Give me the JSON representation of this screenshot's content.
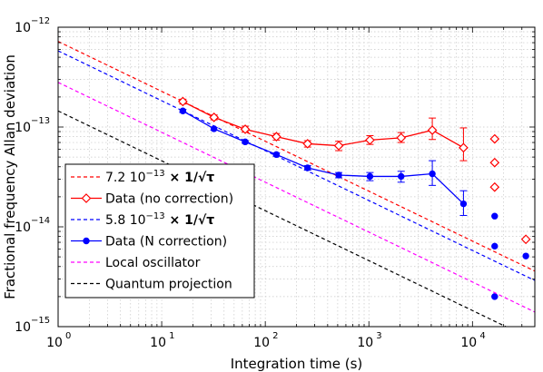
{
  "chart_data": {
    "type": "line",
    "xscale": "log",
    "yscale": "log",
    "xlim": [
      1,
      40000
    ],
    "ylim": [
      1e-15,
      1e-12
    ],
    "grid": true,
    "xlabel": "Integration time (s)",
    "ylabel": "Fractional frequency Allan deviation",
    "x_ticks": [
      {
        "value": 1,
        "base": "10",
        "exp": "0"
      },
      {
        "value": 10,
        "base": "10",
        "exp": "1"
      },
      {
        "value": 100,
        "base": "10",
        "exp": "2"
      },
      {
        "value": 1000,
        "base": "10",
        "exp": "3"
      },
      {
        "value": 10000,
        "base": "10",
        "exp": "4"
      }
    ],
    "y_ticks": [
      {
        "value": 1e-15,
        "base": "10",
        "exp": "−15"
      },
      {
        "value": 1e-14,
        "base": "10",
        "exp": "−14"
      },
      {
        "value": 1e-13,
        "base": "10",
        "exp": "−13"
      },
      {
        "value": 1e-12,
        "base": "10",
        "exp": "−12"
      }
    ],
    "legend_position": "lower-left",
    "series": [
      {
        "name": "7.2 10−13 × 1/√τ",
        "legend_prefix": "7.2 10",
        "legend_exp": "−13",
        "legend_suffix": "× 1/√τ",
        "kind": "fit",
        "coef": 7.2e-13,
        "color": "#ff0000",
        "dash": "dashed"
      },
      {
        "name": "Data (no correction)",
        "kind": "data",
        "marker": "diamond",
        "color": "#ff0000",
        "x": [
          16,
          32,
          64,
          128,
          256,
          512,
          1024,
          2048,
          4096,
          8192
        ],
        "y": [
          1.8e-13,
          1.25e-13,
          9.5e-14,
          8e-14,
          6.8e-14,
          6.5e-14,
          7.4e-14,
          7.8e-14,
          9.3e-14,
          6.2e-14
        ],
        "err_low": [
          1.7e-13,
          1.18e-13,
          8.9e-14,
          7.4e-14,
          6.3e-14,
          5.8e-14,
          6.7e-14,
          7e-14,
          7.5e-14,
          4.6e-14
        ],
        "err_high": [
          1.9e-13,
          1.32e-13,
          1.02e-13,
          8.6e-14,
          7.3e-14,
          7.2e-14,
          8.2e-14,
          8.8e-14,
          1.23e-13,
          9.8e-14
        ],
        "extra_x": [
          16384,
          16384,
          16384,
          32768
        ],
        "extra_y": [
          7.6e-14,
          4.4e-14,
          2.5e-14,
          7.5e-15
        ]
      },
      {
        "name": "5.8 10−13 × 1/√τ",
        "legend_prefix": "5.8 10",
        "legend_exp": "−13",
        "legend_suffix": "× 1/√τ",
        "kind": "fit",
        "coef": 5.8e-13,
        "color": "#0000ff",
        "dash": "dashed"
      },
      {
        "name": "Data (N correction)",
        "kind": "data",
        "marker": "circle",
        "color": "#0000ff",
        "x": [
          16,
          32,
          64,
          128,
          256,
          512,
          1024,
          2048,
          4096,
          8192
        ],
        "y": [
          1.45e-13,
          9.6e-14,
          7.1e-14,
          5.3e-14,
          3.9e-14,
          3.3e-14,
          3.2e-14,
          3.2e-14,
          3.4e-14,
          1.7e-14
        ],
        "err_low": [
          1.4e-13,
          9.3e-14,
          6.9e-14,
          5.1e-14,
          3.7e-14,
          3.1e-14,
          2.9e-14,
          2.8e-14,
          2.6e-14,
          1.3e-14
        ],
        "err_high": [
          1.5e-13,
          9.9e-14,
          7.3e-14,
          5.5e-14,
          4.1e-14,
          3.5e-14,
          3.5e-14,
          3.6e-14,
          4.6e-14,
          2.3e-14
        ],
        "extra_x": [
          16384,
          16384,
          16384,
          32768
        ],
        "extra_y": [
          1.28e-14,
          6.4e-15,
          2e-15,
          5.1e-15
        ]
      },
      {
        "name": "Local oscillator",
        "kind": "fit",
        "coef": 2.8e-13,
        "color": "#ff00ff",
        "dash": "dashed"
      },
      {
        "name": "Quantum projection",
        "kind": "fit",
        "coef": 1.45e-13,
        "color": "#000000",
        "dash": "dashed"
      }
    ]
  }
}
